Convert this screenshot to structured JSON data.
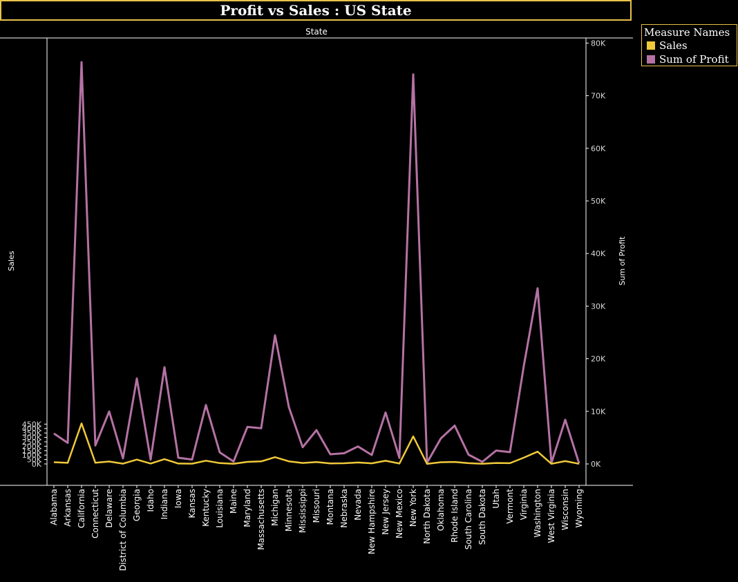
{
  "title": "Profit vs Sales : US State",
  "legend": {
    "title": "Measure Names",
    "items": [
      {
        "label": "Sales",
        "color": "#f0c93a"
      },
      {
        "label": "Sum of Profit",
        "color": "#b572a4"
      }
    ]
  },
  "chart_data": {
    "type": "line",
    "top_axis_label": "State",
    "ylabel": "Sales",
    "y2label": "Sum of Profit",
    "ylim": [
      0,
      475000
    ],
    "y2lim": [
      0,
      80000
    ],
    "yticks": [
      "0K",
      "50K",
      "100K",
      "150K",
      "200K",
      "250K",
      "300K",
      "350K",
      "400K",
      "450K"
    ],
    "y2ticks": [
      "0K",
      "10K",
      "20K",
      "30K",
      "40K",
      "50K",
      "60K",
      "70K",
      "80K"
    ],
    "grid": false,
    "legend_position": "top-right",
    "categories": [
      "Alabama",
      "Arkansas",
      "California",
      "Connecticut",
      "Delaware",
      "District of Columbia",
      "Georgia",
      "Idaho",
      "Indiana",
      "Iowa",
      "Kansas",
      "Kentucky",
      "Louisiana",
      "Maine",
      "Maryland",
      "Massachusetts",
      "Michigan",
      "Minnesota",
      "Mississippi",
      "Missouri",
      "Montana",
      "Nebraska",
      "Nevada",
      "New Hampshire",
      "New Jersey",
      "New Mexico",
      "New York",
      "North Dakota",
      "Oklahoma",
      "Rhode Island",
      "South Carolina",
      "South Dakota",
      "Utah",
      "Vermont",
      "Virginia",
      "Washington",
      "West Virginia",
      "Wisconsin",
      "Wyoming"
    ],
    "series": [
      {
        "name": "Sales",
        "axis": "left",
        "color": "#f0c93a",
        "values": [
          19511,
          12678,
          457688,
          13384,
          27451,
          2865,
          49096,
          4382,
          53555,
          4580,
          2914,
          36592,
          9217,
          1271,
          23706,
          28634,
          76270,
          29863,
          10771,
          22205,
          5589,
          7465,
          16729,
          7293,
          35764,
          4784,
          310876,
          920,
          19683,
          22628,
          8482,
          1316,
          11220,
          8929,
          70637,
          138641,
          1210,
          32115,
          1603
        ]
      },
      {
        "name": "Sum of Profit",
        "axis": "right",
        "color": "#b572a4",
        "values": [
          5787,
          4009,
          76381,
          3511,
          9977,
          1060,
          16250,
          827,
          18383,
          1184,
          836,
          11200,
          2196,
          454,
          7031,
          6786,
          24463,
          10823,
          3173,
          6436,
          1833,
          2037,
          3317,
          1707,
          9773,
          1157,
          74039,
          230,
          4853,
          7286,
          1770,
          395,
          2547,
          2245,
          18598,
          33403,
          186,
          8402,
          100
        ]
      }
    ]
  }
}
